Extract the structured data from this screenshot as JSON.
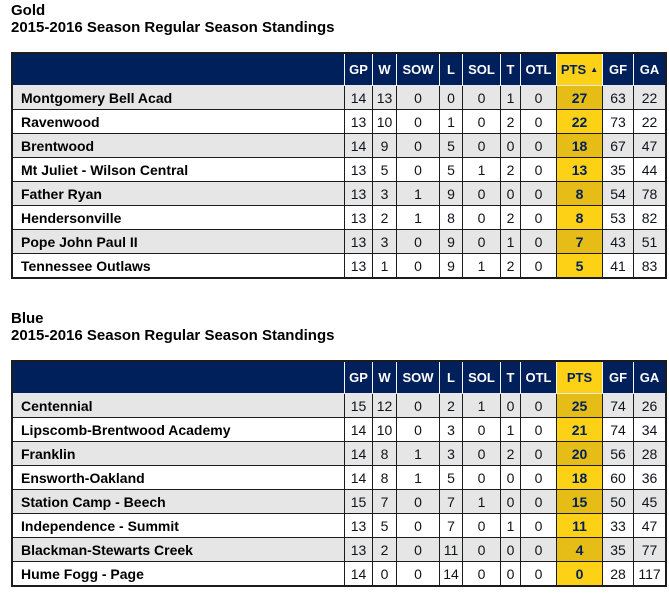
{
  "colors": {
    "navy": "#00205b",
    "gold": "#fdd116",
    "gold-muted": "#e6bd17",
    "row-alt": "#e6e6e6",
    "row-white": "#ffffff",
    "border-dark": "#1c1c1c",
    "text-dark": "#10121c",
    "header-text": "#ffffff"
  },
  "tables": [
    {
      "title": "Gold",
      "subtitle": "2015-2016 Season Regular Season Standings",
      "columns": [
        "GP",
        "W",
        "SOW",
        "L",
        "SOL",
        "T",
        "OTL",
        "PTS",
        "GF",
        "GA"
      ],
      "sorted_column": "PTS",
      "sort_indicator": "▲",
      "rows": [
        {
          "team": "Montgomery Bell Acad",
          "values": [
            14,
            13,
            0,
            0,
            0,
            1,
            0,
            27,
            63,
            22
          ]
        },
        {
          "team": "Ravenwood",
          "values": [
            13,
            10,
            0,
            1,
            0,
            2,
            0,
            22,
            73,
            22
          ]
        },
        {
          "team": "Brentwood",
          "values": [
            14,
            9,
            0,
            5,
            0,
            0,
            0,
            18,
            67,
            47
          ]
        },
        {
          "team": "Mt Juliet - Wilson Central",
          "values": [
            13,
            5,
            0,
            5,
            1,
            2,
            0,
            13,
            35,
            44
          ]
        },
        {
          "team": "Father Ryan",
          "values": [
            13,
            3,
            1,
            9,
            0,
            0,
            0,
            8,
            54,
            78
          ]
        },
        {
          "team": "Hendersonville",
          "values": [
            13,
            2,
            1,
            8,
            0,
            2,
            0,
            8,
            53,
            82
          ]
        },
        {
          "team": "Pope John Paul II",
          "values": [
            13,
            3,
            0,
            9,
            0,
            1,
            0,
            7,
            43,
            51
          ]
        },
        {
          "team": "Tennessee Outlaws",
          "values": [
            13,
            1,
            0,
            9,
            1,
            2,
            0,
            5,
            41,
            83
          ]
        }
      ]
    },
    {
      "title": "Blue",
      "subtitle": "2015-2016 Season Regular Season Standings",
      "columns": [
        "GP",
        "W",
        "SOW",
        "L",
        "SOL",
        "T",
        "OTL",
        "PTS",
        "GF",
        "GA"
      ],
      "sorted_column": "PTS",
      "sort_indicator": "",
      "rows": [
        {
          "team": "Centennial",
          "values": [
            15,
            12,
            0,
            2,
            1,
            0,
            0,
            25,
            74,
            26
          ]
        },
        {
          "team": "Lipscomb-Brentwood Academy",
          "values": [
            14,
            10,
            0,
            3,
            0,
            1,
            0,
            21,
            74,
            34
          ]
        },
        {
          "team": "Franklin",
          "values": [
            14,
            8,
            1,
            3,
            0,
            2,
            0,
            20,
            56,
            28
          ]
        },
        {
          "team": "Ensworth-Oakland",
          "values": [
            14,
            8,
            1,
            5,
            0,
            0,
            0,
            18,
            60,
            36
          ]
        },
        {
          "team": "Station Camp - Beech",
          "values": [
            15,
            7,
            0,
            7,
            1,
            0,
            0,
            15,
            50,
            45
          ]
        },
        {
          "team": "Independence - Summit",
          "values": [
            13,
            5,
            0,
            7,
            0,
            1,
            0,
            11,
            33,
            47
          ]
        },
        {
          "team": "Blackman-Stewarts Creek",
          "values": [
            13,
            2,
            0,
            11,
            0,
            0,
            0,
            4,
            35,
            77
          ]
        },
        {
          "team": "Hume Fogg - Page",
          "values": [
            14,
            0,
            0,
            14,
            0,
            0,
            0,
            0,
            28,
            117
          ]
        }
      ]
    }
  ]
}
